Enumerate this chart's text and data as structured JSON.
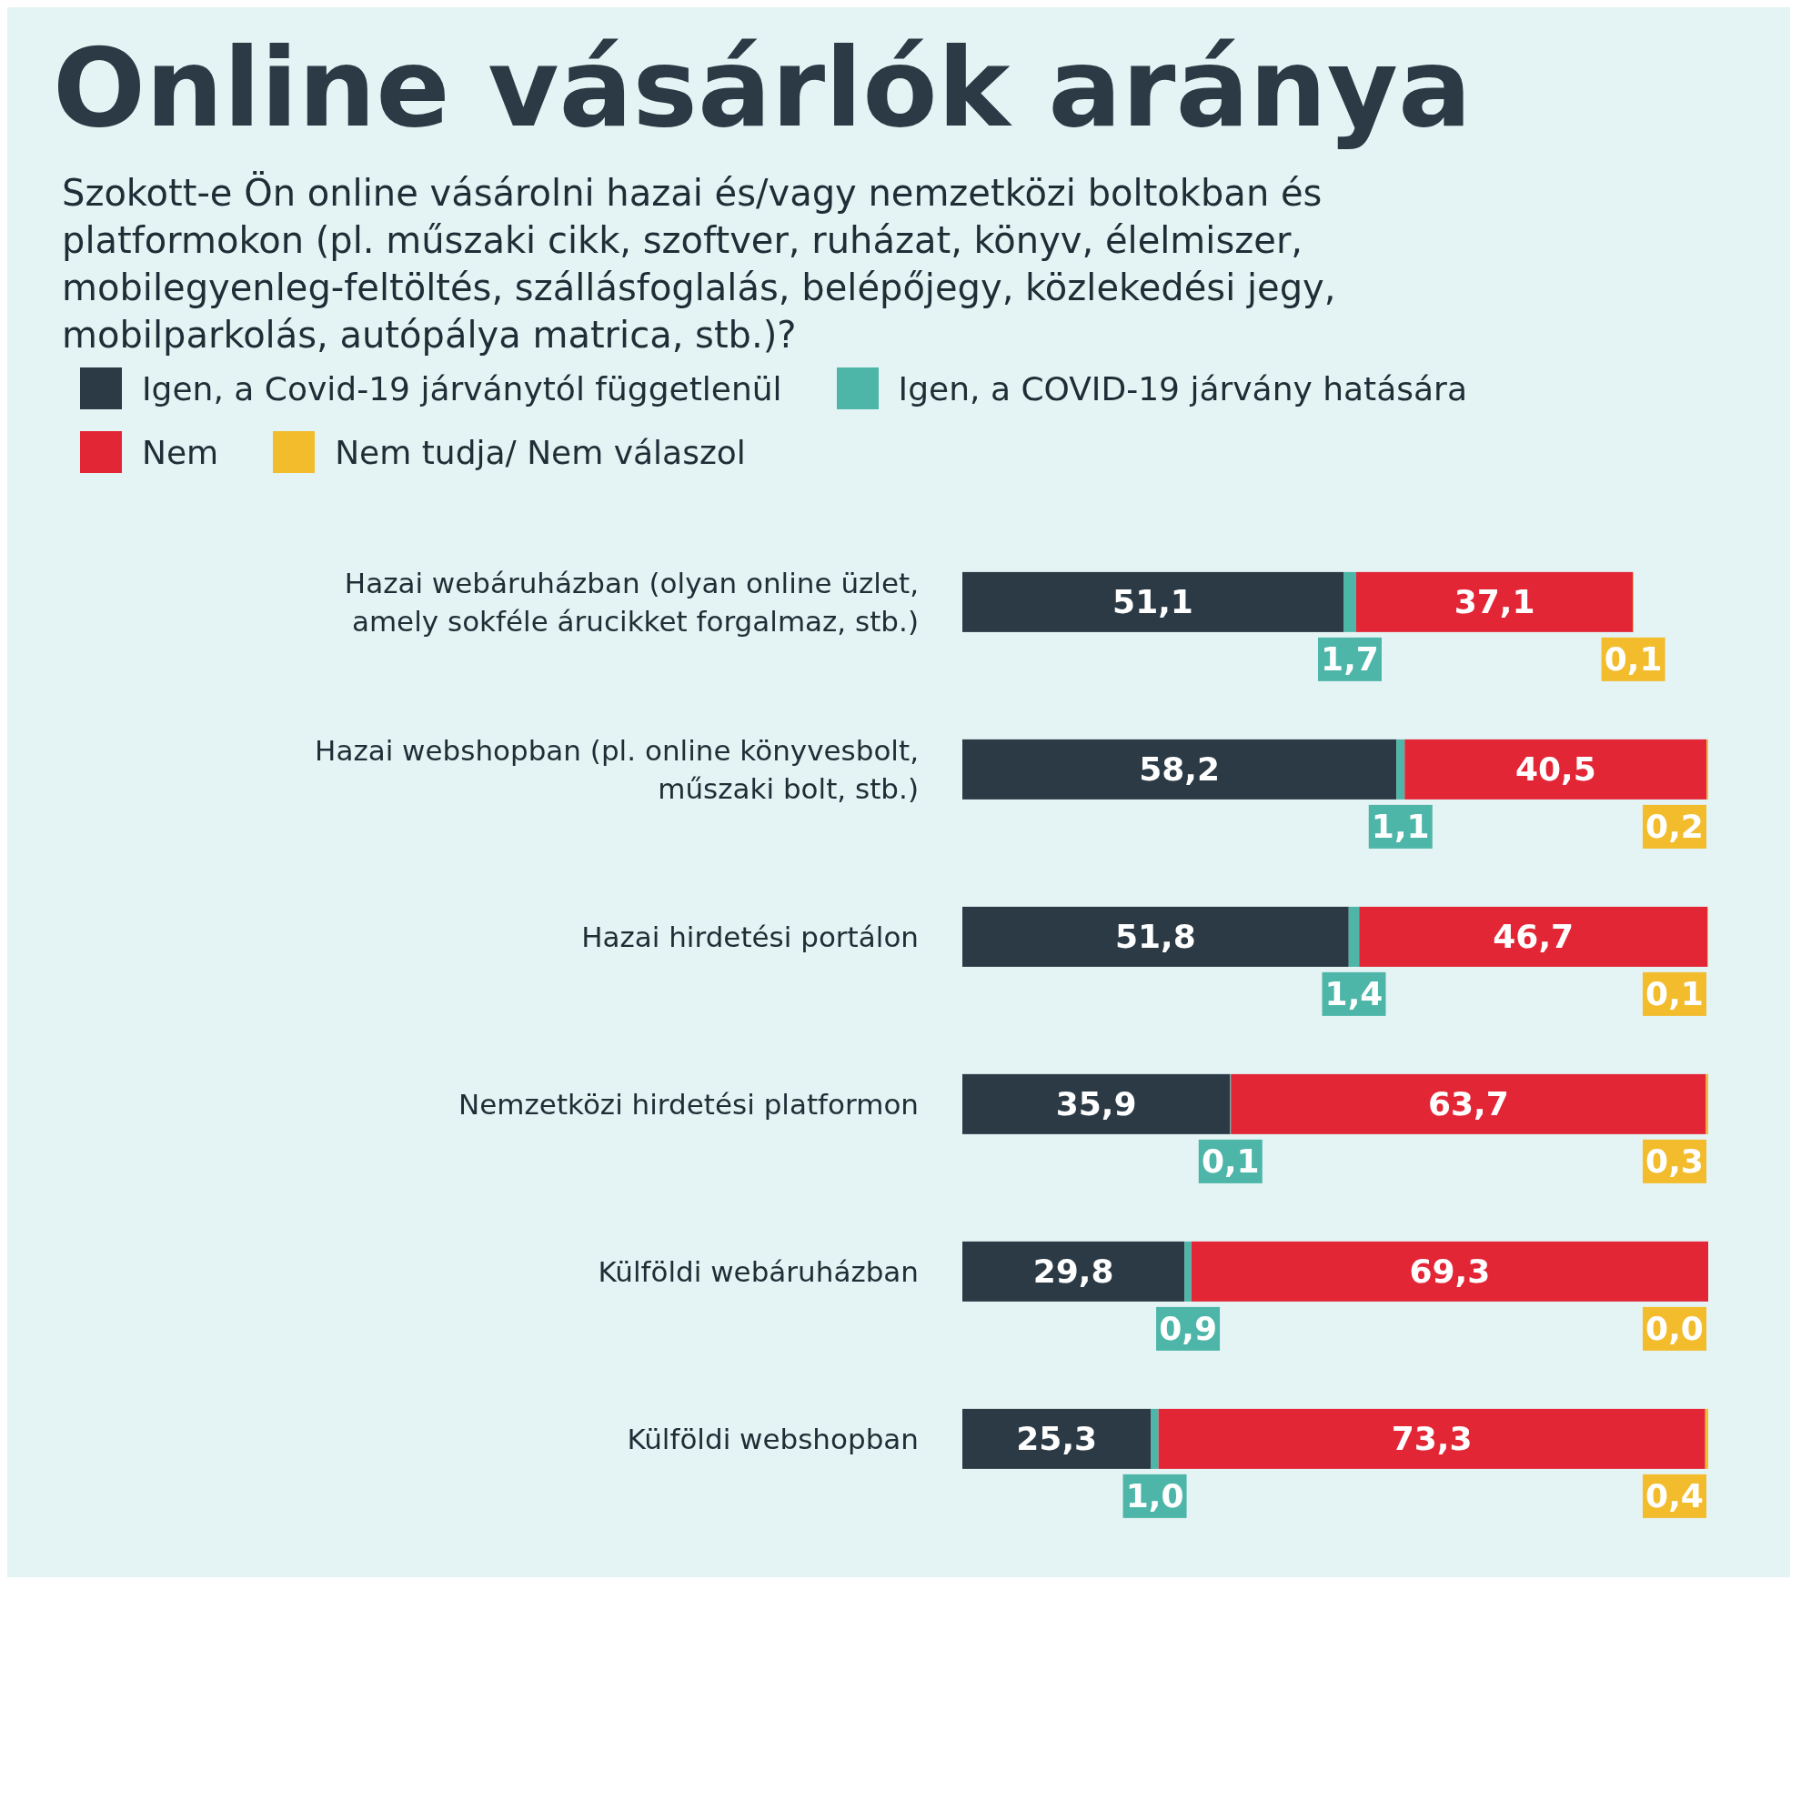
{
  "chart_data": {
    "type": "bar",
    "orientation": "horizontal",
    "stacked": true,
    "title": "Online vásárlók aránya",
    "subtitle": "Szokott-e Ön online vásárolni hazai és/vagy nemzetközi boltokban és platformokon (pl. műszaki cikk, szoftver, ruházat, könyv, élelmiszer, mobilegyenleg-feltöltés, szállásfoglalás, belépőjegy, közlekedési jegy, mobilparkolás, autópálya matrica, stb.)?",
    "categories": [
      "Hazai webáruházban (olyan online üzlet, amely sokféle árucikket forgalmaz, stb.)",
      "Hazai webshopban (pl. online könyvesbolt, műszaki bolt, stb.)",
      "Hazai hirdetési portálon",
      "Nemzetközi hirdetési platformon",
      "Külföldi webáruházban",
      "Külföldi webshopban"
    ],
    "xlim": [
      0,
      100
    ],
    "legend": "top left",
    "series": [
      {
        "name": "Igen, a Covid-19 járványtól függetlenül",
        "color": "#2b3a45",
        "values": [
          51.1,
          58.2,
          51.8,
          35.9,
          29.8,
          25.3
        ],
        "value_labels": [
          "51,1",
          "58,2",
          "51,8",
          "35,9",
          "29,8",
          "25,3"
        ]
      },
      {
        "name": "Igen, a COVID-19 járvány hatására",
        "color": "#4db6a8",
        "values": [
          1.7,
          1.1,
          1.4,
          0.1,
          0.9,
          1.0
        ],
        "value_labels": [
          "1,7",
          "1,1",
          "1,4",
          "0,1",
          "0,9",
          "1,0"
        ]
      },
      {
        "name": "Nem",
        "color": "#e32636",
        "values": [
          37.1,
          40.5,
          46.7,
          63.7,
          69.3,
          73.3
        ],
        "value_labels": [
          "37,1",
          "40,5",
          "46,7",
          "63,7",
          "69,3",
          "73,3"
        ]
      },
      {
        "name": "Nem tudja/ Nem válaszol",
        "color": "#f2bc2c",
        "values": [
          0.1,
          0.2,
          0.1,
          0.3,
          0.0,
          0.4
        ],
        "value_labels": [
          "0,1",
          "0,2",
          "0,1",
          "0,3",
          "0,0",
          "0,4"
        ]
      }
    ]
  }
}
